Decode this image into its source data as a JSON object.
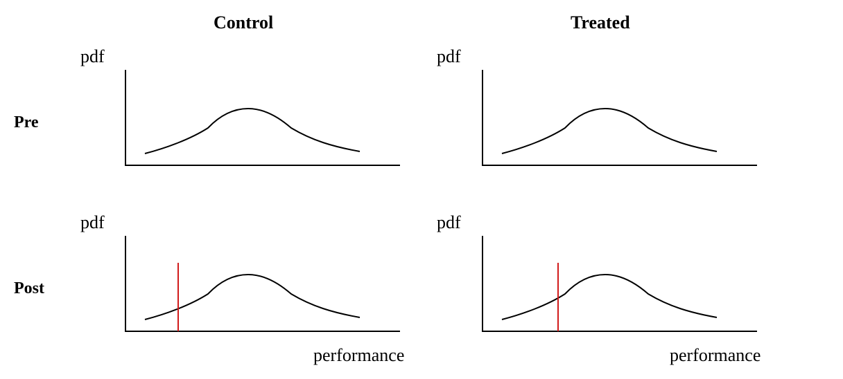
{
  "columns": [
    "Control",
    "Treated"
  ],
  "rows": [
    "Pre",
    "Post"
  ],
  "y_axis_label": "pdf",
  "x_axis_label": "performance",
  "colors": {
    "curve": "#000000",
    "axis": "#000000",
    "marker": "#d11a1a"
  },
  "panels": [
    {
      "column": "Control",
      "row": "Pre",
      "has_marker": false
    },
    {
      "column": "Treated",
      "row": "Pre",
      "has_marker": false
    },
    {
      "column": "Control",
      "row": "Post",
      "has_marker": true
    },
    {
      "column": "Treated",
      "row": "Post",
      "has_marker": true
    }
  ]
}
